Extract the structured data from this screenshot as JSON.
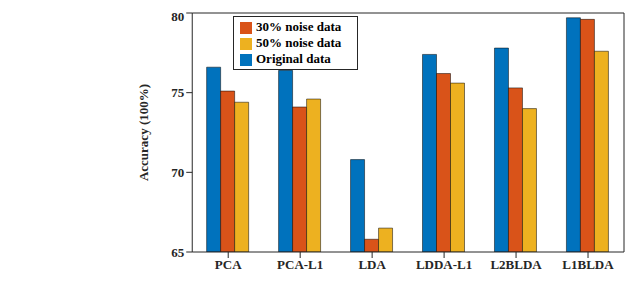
{
  "chart_data": {
    "type": "bar",
    "y_label": "Accuracy (100%)",
    "categories": [
      "PCA",
      "PCA-L1",
      "LDA",
      "LDDA-L1",
      "L2BLDA",
      "L1BLDA"
    ],
    "series": [
      {
        "name": "Original data",
        "color": "#0072BD",
        "values": [
          76.6,
          76.4,
          70.8,
          77.4,
          77.8,
          79.7
        ]
      },
      {
        "name": "30% noise data",
        "color": "#D95319",
        "values": [
          75.1,
          74.1,
          65.8,
          76.2,
          75.3,
          79.6
        ]
      },
      {
        "name": "50% noise data",
        "color": "#EDB120",
        "values": [
          74.4,
          74.6,
          66.5,
          75.6,
          74.0,
          77.6
        ]
      }
    ],
    "ylim": [
      65,
      80
    ],
    "yticks": [
      65,
      70,
      75,
      80
    ],
    "grid": false,
    "legend": "upper left"
  }
}
